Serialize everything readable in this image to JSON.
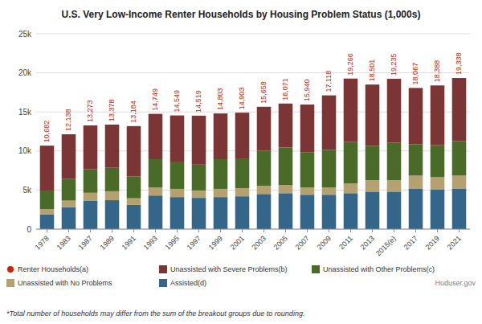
{
  "chart_data": {
    "type": "bar",
    "stacked": true,
    "title": "U.S. Very Low-Income Renter Households by Housing Problem Status (1,000s)",
    "categories": [
      "1978",
      "1983",
      "1987",
      "1989",
      "1991",
      "1993",
      "1995",
      "1997",
      "1999",
      "2001",
      "2003",
      "2005",
      "2007",
      "2009",
      "2011",
      "2013",
      "2015(e)",
      "2017",
      "2019",
      "2021"
    ],
    "series": [
      {
        "name": "Assisted(d)",
        "color": "#336688",
        "values": [
          1900,
          2800,
          3600,
          3700,
          3100,
          4300,
          4100,
          4000,
          4100,
          4200,
          4500,
          4600,
          4400,
          4400,
          4600,
          4800,
          4800,
          5200,
          5100,
          5200
        ]
      },
      {
        "name": "Unassisted with No Problems",
        "color": "#b5a070",
        "values": [
          650,
          850,
          1050,
          1150,
          850,
          1050,
          1050,
          950,
          1050,
          1050,
          1050,
          1050,
          950,
          950,
          1250,
          1450,
          1450,
          1650,
          1550,
          1650
        ]
      },
      {
        "name": "Unassisted with Other Problems(c)",
        "color": "#4a6b28",
        "values": [
          2300,
          2800,
          3000,
          3000,
          2800,
          3600,
          3400,
          3300,
          3800,
          3800,
          4500,
          4800,
          4500,
          4800,
          5300,
          4400,
          4800,
          4000,
          4100,
          4400
        ]
      },
      {
        "name": "Unassisted with Severe Problems(b)",
        "color": "#7b3535",
        "values": [
          5832,
          5688,
          5623,
          5528,
          6434,
          5799,
          5999,
          6269,
          5853,
          5853,
          5608,
          5621,
          6090,
          6968,
          8116,
          7851,
          8185,
          7217,
          7638,
          8088
        ]
      },
      {
        "name": "Renter Households(a)",
        "type": "text",
        "color": "#cc2200",
        "marker": "circle",
        "data_labels": true,
        "values": [
          10682,
          12138,
          13273,
          13378,
          13184,
          14749,
          14549,
          14519,
          14803,
          14903,
          15658,
          16071,
          15940,
          17118,
          19266,
          18501,
          19235,
          18067,
          18388,
          19338
        ],
        "value_labels": [
          "10,682",
          "12,138",
          "13,273",
          "13,378",
          "13,184",
          "14,749",
          "14,549",
          "14,519",
          "14,803",
          "14,903",
          "15,658",
          "16,071",
          "15,940",
          "17,118",
          "19,266",
          "18,501",
          "19,235",
          "18,067",
          "18,388",
          "19,338"
        ]
      }
    ],
    "ylim": [
      0,
      25000
    ],
    "yticks": [
      0,
      {
        "value": 5000,
        "label": "5k"
      },
      {
        "value": 10000,
        "label": "10k"
      },
      {
        "value": 15000,
        "label": "15k"
      },
      {
        "value": 20000,
        "label": "20k"
      },
      {
        "value": 25000,
        "label": "25k"
      }
    ],
    "grid": true,
    "source": "Huduser.gov",
    "footnote": "*Total number of households may differ from the sum of the breakout groups due to rounding."
  }
}
